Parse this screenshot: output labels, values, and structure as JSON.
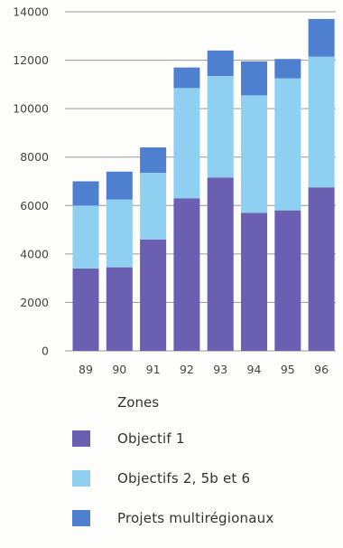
{
  "chart_data": {
    "type": "bar",
    "stacked": true,
    "categories": [
      "89",
      "90",
      "91",
      "92",
      "93",
      "94",
      "95",
      "96"
    ],
    "series": [
      {
        "name": "Objectif 1",
        "color": "#6a5fb0",
        "values": [
          3400,
          3450,
          4600,
          6300,
          7150,
          5700,
          5800,
          6750
        ]
      },
      {
        "name": "Objectifs 2, 5b et 6",
        "color": "#8fcff0",
        "values": [
          2600,
          2800,
          2750,
          4550,
          4200,
          4850,
          5450,
          5400
        ]
      },
      {
        "name": "Projets multirégionaux",
        "color": "#4f7fcf",
        "values": [
          1000,
          1150,
          1050,
          850,
          1050,
          1400,
          800,
          1550
        ]
      }
    ],
    "yticks": [
      0,
      2000,
      4000,
      6000,
      8000,
      10000,
      12000,
      14000
    ],
    "ylim": [
      0,
      14000
    ],
    "grid": true,
    "legend_title": "Zones",
    "legend_position": "bottom"
  }
}
